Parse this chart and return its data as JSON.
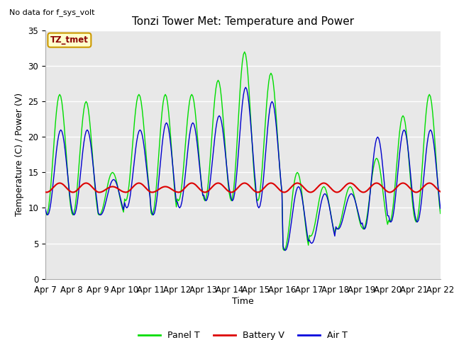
{
  "title": "Tonzi Tower Met: Temperature and Power",
  "ylabel": "Temperature (C) / Power (V)",
  "xlabel": "Time",
  "top_left_note": "No data for f_sys_volt",
  "annotation_label": "TZ_tmet",
  "ylim": [
    0,
    35
  ],
  "yticks": [
    0,
    5,
    10,
    15,
    20,
    25,
    30,
    35
  ],
  "xtick_labels": [
    "Apr 7",
    "Apr 8",
    "Apr 9",
    "Apr 10",
    "Apr 11",
    "Apr 12",
    "Apr 13",
    "Apr 14",
    "Apr 15",
    "Apr 16",
    "Apr 17",
    "Apr 18",
    "Apr 19",
    "Apr 20",
    "Apr 21",
    "Apr 22"
  ],
  "legend_entries": [
    "Panel T",
    "Battery V",
    "Air T"
  ],
  "legend_colors": [
    "#00dd00",
    "#dd0000",
    "#0000dd"
  ],
  "bg_color": "#e8e8e8",
  "panel_t_color": "#00dd00",
  "battery_v_color": "#dd0000",
  "air_t_color": "#0000cc",
  "title_fontsize": 11,
  "label_fontsize": 9,
  "tick_fontsize": 8.5,
  "note_fontsize": 8,
  "annot_fontsize": 8.5
}
